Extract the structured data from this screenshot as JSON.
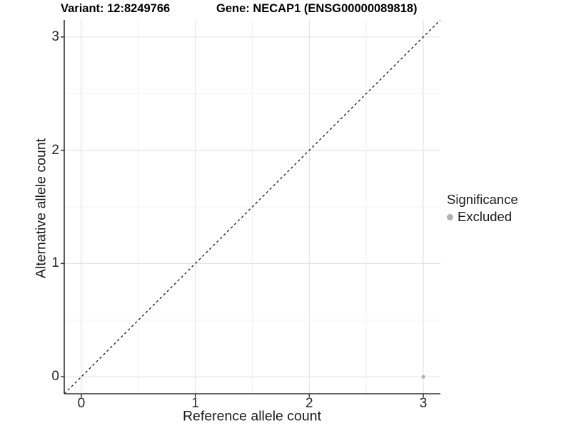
{
  "titles": {
    "variant": "Variant: 12:8249766",
    "gene": "Gene: NECAP1 (ENSG00000089818)"
  },
  "axes": {
    "x": {
      "label": "Reference allele count"
    },
    "y": {
      "label": "Alternative allele count"
    }
  },
  "legend": {
    "title": "Significance",
    "items": [
      {
        "label": "Excluded",
        "color": "#b0b0b0"
      }
    ]
  },
  "colors": {
    "axis_line": "#333333",
    "tick_mark": "#333333",
    "grid_major": "#e4e4e4",
    "grid_minor": "#f1f1f1",
    "reference_line": "#1a1a1a",
    "point": "#b0b0b0",
    "background": "#ffffff"
  },
  "chart_data": {
    "type": "scatter",
    "title": "Variant: 12:8249766 | Gene: NECAP1 (ENSG00000089818)",
    "xlabel": "Reference allele count",
    "ylabel": "Alternative allele count",
    "xlim": [
      -0.15,
      3.15
    ],
    "ylim": [
      -0.15,
      3.15
    ],
    "x_ticks": [
      0,
      1,
      2,
      3
    ],
    "y_ticks": [
      0,
      1,
      2,
      3
    ],
    "x_minor_ticks": [
      0.5,
      1.5,
      2.5
    ],
    "y_minor_ticks": [
      0.5,
      1.5,
      2.5
    ],
    "grid": true,
    "legend_position": "right",
    "reference_line": {
      "type": "identity",
      "slope": 1,
      "intercept": 0,
      "style": "dashed"
    },
    "series": [
      {
        "name": "Excluded",
        "color": "#b0b0b0",
        "points": [
          {
            "x": 3,
            "y": 0
          }
        ]
      }
    ]
  }
}
